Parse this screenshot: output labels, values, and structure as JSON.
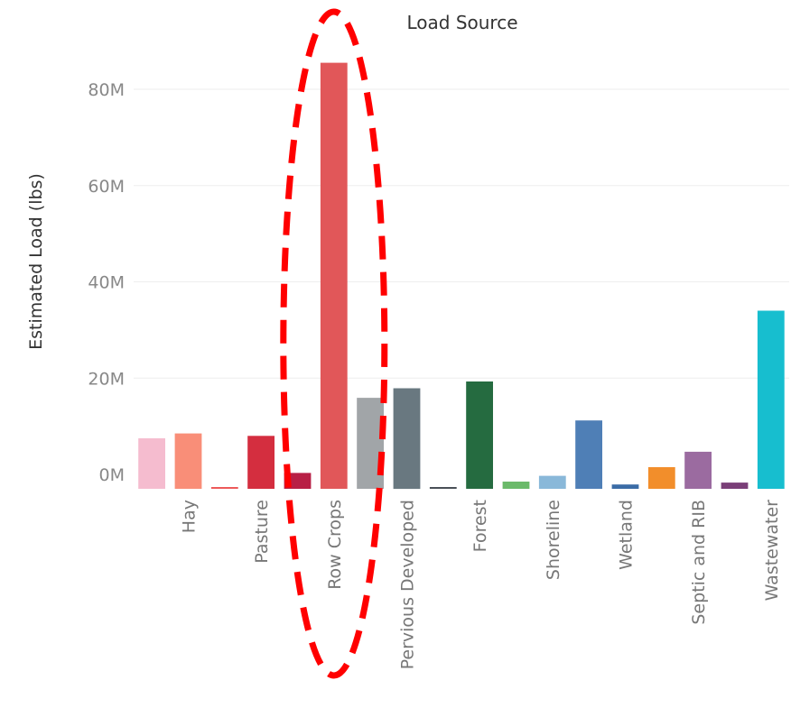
{
  "chart_data": {
    "type": "bar",
    "title": "Load Source",
    "ylabel": "Estimated Load (lbs)",
    "xlabel": "",
    "ylim": [
      -3,
      90
    ],
    "yticks": [
      {
        "value": 0,
        "label": "0M"
      },
      {
        "value": 20,
        "label": "20M"
      },
      {
        "value": 40,
        "label": "40M"
      },
      {
        "value": 60,
        "label": "60M"
      },
      {
        "value": 80,
        "label": "80M"
      }
    ],
    "grid": true,
    "unit": "millions of lbs",
    "categories": [
      "",
      "Hay",
      "",
      "Pasture",
      "",
      "Row Crops",
      "",
      "Pervious Developed",
      "",
      "Forest",
      "",
      "Shoreline",
      "",
      "Wetland",
      "",
      "Septic and RIB",
      "",
      "Wastewater"
    ],
    "values": [
      7.5,
      8.5,
      -3.5,
      8.0,
      0.3,
      85.5,
      15.9,
      17.9,
      -2.8,
      19.3,
      -1.5,
      -0.3,
      11.2,
      -2.1,
      1.5,
      4.7,
      -1.7,
      34.0
    ],
    "colors": [
      "#f5bccf",
      "#f98e78",
      "#ed5a5a",
      "#d42e3f",
      "#b81f45",
      "#e15759",
      "#a1a5a8",
      "#697880",
      "#4a5057",
      "#256b40",
      "#6bba6a",
      "#89b8d9",
      "#4f7fb6",
      "#3b6ca6",
      "#f28e2b",
      "#9b6ba0",
      "#7a3f78",
      "#17becf"
    ]
  },
  "annotation": {
    "shape": "dashed-ellipse",
    "color": "#ff0000",
    "highlights": "Row Crops"
  }
}
